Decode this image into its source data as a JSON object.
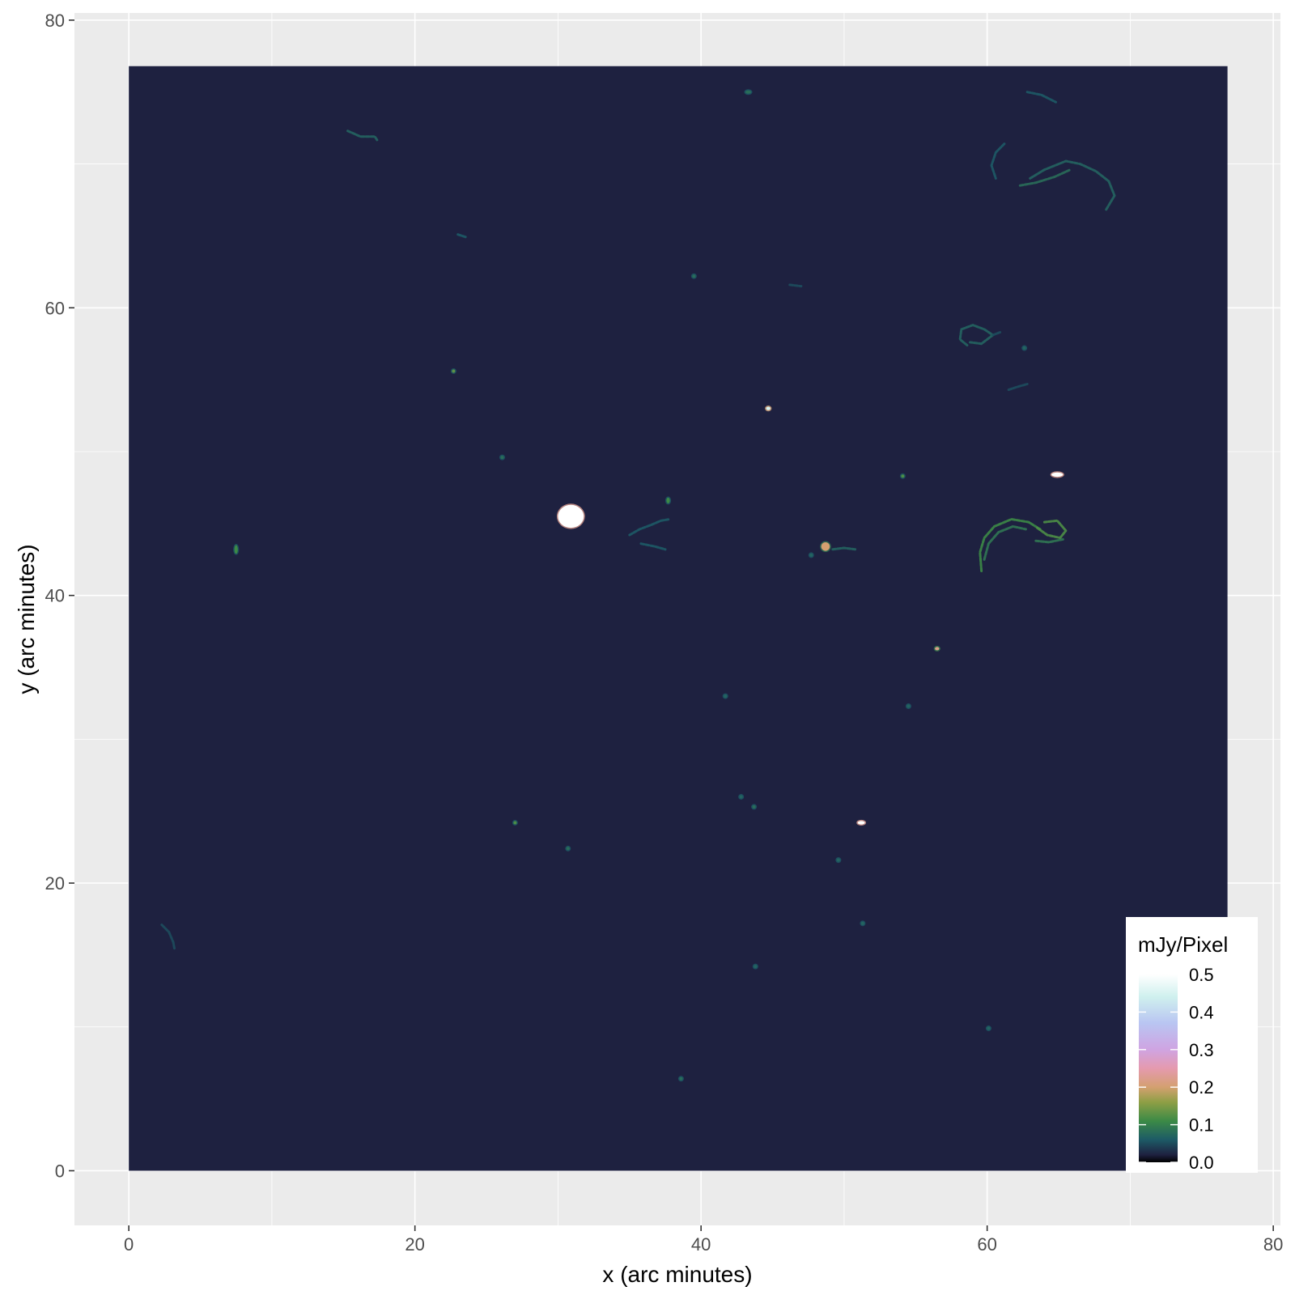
{
  "chart_data": {
    "type": "heatmap",
    "title": "",
    "xlabel": "x (arc minutes)",
    "ylabel": "y (arc minutes)",
    "xlim": [
      -3.8,
      80.5
    ],
    "ylim": [
      -3.8,
      80.5
    ],
    "x_ticks": [
      0,
      20,
      40,
      60,
      80
    ],
    "y_ticks": [
      0,
      20,
      40,
      60,
      80
    ],
    "x_tick_labels": [
      "0",
      "20",
      "40",
      "60",
      "80"
    ],
    "y_tick_labels": [
      "0",
      "20",
      "40",
      "60",
      "80"
    ],
    "grid": true,
    "image_extent": {
      "x": [
        0,
        76.8
      ],
      "y": [
        0,
        76.8
      ]
    },
    "background_value": 0.02,
    "colors": {
      "panel_background": "#ebebeb",
      "grid_line": "#ffffff",
      "image_background": "#1e2140"
    },
    "colorbar": {
      "title": "mJy/Pixel",
      "position": "bottom-right-inside",
      "range": [
        0,
        0.5
      ],
      "ticks": [
        0.0,
        0.1,
        0.2,
        0.3,
        0.4,
        0.5
      ],
      "tick_labels": [
        "0.0",
        "0.1",
        "0.2",
        "0.3",
        "0.4",
        "0.5"
      ],
      "stops": [
        {
          "value": 0.0,
          "color": "#000000"
        },
        {
          "value": 0.02,
          "color": "#1e2140"
        },
        {
          "value": 0.06,
          "color": "#1d5a66"
        },
        {
          "value": 0.11,
          "color": "#3c8a46"
        },
        {
          "value": 0.16,
          "color": "#8e9f45"
        },
        {
          "value": 0.2,
          "color": "#d4a070"
        },
        {
          "value": 0.25,
          "color": "#e59aae"
        },
        {
          "value": 0.3,
          "color": "#cfa4e2"
        },
        {
          "value": 0.37,
          "color": "#b9c5f2"
        },
        {
          "value": 0.44,
          "color": "#cff0ee"
        },
        {
          "value": 0.5,
          "color": "#ffffff"
        }
      ]
    },
    "sources": [
      {
        "x": 30.9,
        "y": 45.5,
        "rx": 0.9,
        "ry": 0.8,
        "value": 0.5
      },
      {
        "x": 44.7,
        "y": 53.0,
        "rx": 0.15,
        "ry": 0.12,
        "value": 0.45
      },
      {
        "x": 64.9,
        "y": 48.4,
        "rx": 0.4,
        "ry": 0.15,
        "value": 0.5
      },
      {
        "x": 51.2,
        "y": 24.2,
        "rx": 0.25,
        "ry": 0.12,
        "value": 0.5
      },
      {
        "x": 56.5,
        "y": 36.3,
        "rx": 0.15,
        "ry": 0.1,
        "value": 0.22
      },
      {
        "x": 48.7,
        "y": 43.4,
        "rx": 0.3,
        "ry": 0.3,
        "value": 0.2
      },
      {
        "x": 22.7,
        "y": 55.6,
        "rx": 0.1,
        "ry": 0.1,
        "value": 0.13
      },
      {
        "x": 54.1,
        "y": 48.3,
        "rx": 0.08,
        "ry": 0.08,
        "value": 0.12
      },
      {
        "x": 27.0,
        "y": 24.2,
        "rx": 0.1,
        "ry": 0.08,
        "value": 0.12
      },
      {
        "x": 7.5,
        "y": 43.2,
        "rx": 0.12,
        "ry": 0.3,
        "value": 0.11
      },
      {
        "x": 37.7,
        "y": 46.6,
        "rx": 0.12,
        "ry": 0.2,
        "value": 0.11
      },
      {
        "x": 39.5,
        "y": 62.2,
        "rx": 0.07,
        "ry": 0.07,
        "value": 0.08
      },
      {
        "x": 41.7,
        "y": 33.0,
        "rx": 0.06,
        "ry": 0.06,
        "value": 0.07
      },
      {
        "x": 43.3,
        "y": 75.0,
        "rx": 0.2,
        "ry": 0.06,
        "value": 0.08
      },
      {
        "x": 43.7,
        "y": 25.3,
        "rx": 0.08,
        "ry": 0.08,
        "value": 0.08
      },
      {
        "x": 42.8,
        "y": 26.0,
        "rx": 0.06,
        "ry": 0.06,
        "value": 0.07
      },
      {
        "x": 38.6,
        "y": 6.4,
        "rx": 0.08,
        "ry": 0.08,
        "value": 0.08
      },
      {
        "x": 30.7,
        "y": 22.4,
        "rx": 0.08,
        "ry": 0.06,
        "value": 0.08
      },
      {
        "x": 43.8,
        "y": 14.2,
        "rx": 0.06,
        "ry": 0.06,
        "value": 0.07
      },
      {
        "x": 60.1,
        "y": 9.9,
        "rx": 0.06,
        "ry": 0.06,
        "value": 0.07
      },
      {
        "x": 54.5,
        "y": 32.3,
        "rx": 0.05,
        "ry": 0.05,
        "value": 0.07
      },
      {
        "x": 49.6,
        "y": 21.6,
        "rx": 0.05,
        "ry": 0.05,
        "value": 0.07
      },
      {
        "x": 51.3,
        "y": 17.2,
        "rx": 0.05,
        "ry": 0.05,
        "value": 0.07
      },
      {
        "x": 26.1,
        "y": 49.6,
        "rx": 0.06,
        "ry": 0.06,
        "value": 0.08
      },
      {
        "x": 47.7,
        "y": 42.8,
        "rx": 0.05,
        "ry": 0.05,
        "value": 0.07
      },
      {
        "x": 62.6,
        "y": 57.2,
        "rx": 0.05,
        "ry": 0.05,
        "value": 0.07
      }
    ],
    "filaments": [
      {
        "points": [
          [
            15.3,
            72.3
          ],
          [
            16.2,
            71.9
          ],
          [
            17.2,
            71.9
          ],
          [
            17.4,
            71.6
          ]
        ],
        "value": 0.07
      },
      {
        "points": [
          [
            23.0,
            65.1
          ],
          [
            23.6,
            64.9
          ]
        ],
        "value": 0.06
      },
      {
        "points": [
          [
            46.2,
            61.6
          ],
          [
            47.0,
            61.5
          ]
        ],
        "value": 0.05
      },
      {
        "points": [
          [
            61.2,
            71.4
          ],
          [
            60.6,
            70.8
          ],
          [
            60.3,
            69.9
          ],
          [
            60.6,
            69.0
          ]
        ],
        "value": 0.06
      },
      {
        "points": [
          [
            63.0,
            69.0
          ],
          [
            64.0,
            69.6
          ],
          [
            65.5,
            70.2
          ],
          [
            66.5,
            70.0
          ],
          [
            67.6,
            69.5
          ],
          [
            68.5,
            68.8
          ],
          [
            68.9,
            67.8
          ],
          [
            68.3,
            66.8
          ]
        ],
        "value": 0.07
      },
      {
        "points": [
          [
            62.3,
            68.5
          ],
          [
            63.4,
            68.7
          ],
          [
            64.7,
            69.1
          ],
          [
            65.8,
            69.6
          ]
        ],
        "value": 0.08
      },
      {
        "points": [
          [
            62.8,
            75.0
          ],
          [
            63.8,
            74.8
          ],
          [
            64.8,
            74.3
          ]
        ],
        "value": 0.06
      },
      {
        "points": [
          [
            58.6,
            57.4
          ],
          [
            58.1,
            57.8
          ],
          [
            58.2,
            58.5
          ],
          [
            59.0,
            58.8
          ],
          [
            59.8,
            58.5
          ],
          [
            60.4,
            58.1
          ],
          [
            59.6,
            57.5
          ],
          [
            58.8,
            57.6
          ]
        ],
        "value": 0.07
      },
      {
        "points": [
          [
            60.4,
            58.1
          ],
          [
            60.9,
            58.3
          ]
        ],
        "value": 0.05
      },
      {
        "points": [
          [
            61.5,
            54.3
          ],
          [
            62.1,
            54.5
          ],
          [
            62.8,
            54.7
          ]
        ],
        "value": 0.05
      },
      {
        "points": [
          [
            35.0,
            44.2
          ],
          [
            35.7,
            44.6
          ],
          [
            36.5,
            44.9
          ],
          [
            37.2,
            45.2
          ],
          [
            37.8,
            45.3
          ]
        ],
        "value": 0.06
      },
      {
        "points": [
          [
            35.8,
            43.6
          ],
          [
            36.8,
            43.4
          ],
          [
            37.5,
            43.2
          ]
        ],
        "value": 0.06
      },
      {
        "points": [
          [
            59.6,
            41.7
          ],
          [
            59.5,
            43.0
          ],
          [
            59.8,
            44.0
          ],
          [
            60.5,
            44.8
          ],
          [
            61.7,
            45.3
          ],
          [
            62.9,
            45.1
          ],
          [
            63.7,
            44.6
          ]
        ],
        "value": 0.11
      },
      {
        "points": [
          [
            59.8,
            42.5
          ],
          [
            60.1,
            43.6
          ],
          [
            60.8,
            44.4
          ],
          [
            61.8,
            44.8
          ],
          [
            62.7,
            44.6
          ]
        ],
        "value": 0.09
      },
      {
        "points": [
          [
            63.5,
            44.7
          ],
          [
            64.2,
            44.2
          ],
          [
            65.1,
            44.0
          ],
          [
            65.5,
            44.5
          ],
          [
            64.9,
            45.2
          ],
          [
            64.0,
            45.1
          ]
        ],
        "value": 0.12
      },
      {
        "points": [
          [
            63.4,
            43.8
          ],
          [
            64.3,
            43.7
          ],
          [
            65.3,
            43.9
          ]
        ],
        "value": 0.09
      },
      {
        "points": [
          [
            49.2,
            43.2
          ],
          [
            50.0,
            43.3
          ],
          [
            50.8,
            43.2
          ]
        ],
        "value": 0.07
      },
      {
        "points": [
          [
            2.3,
            17.1
          ],
          [
            2.8,
            16.6
          ],
          [
            3.1,
            15.9
          ],
          [
            3.2,
            15.4
          ]
        ],
        "value": 0.05
      }
    ]
  }
}
